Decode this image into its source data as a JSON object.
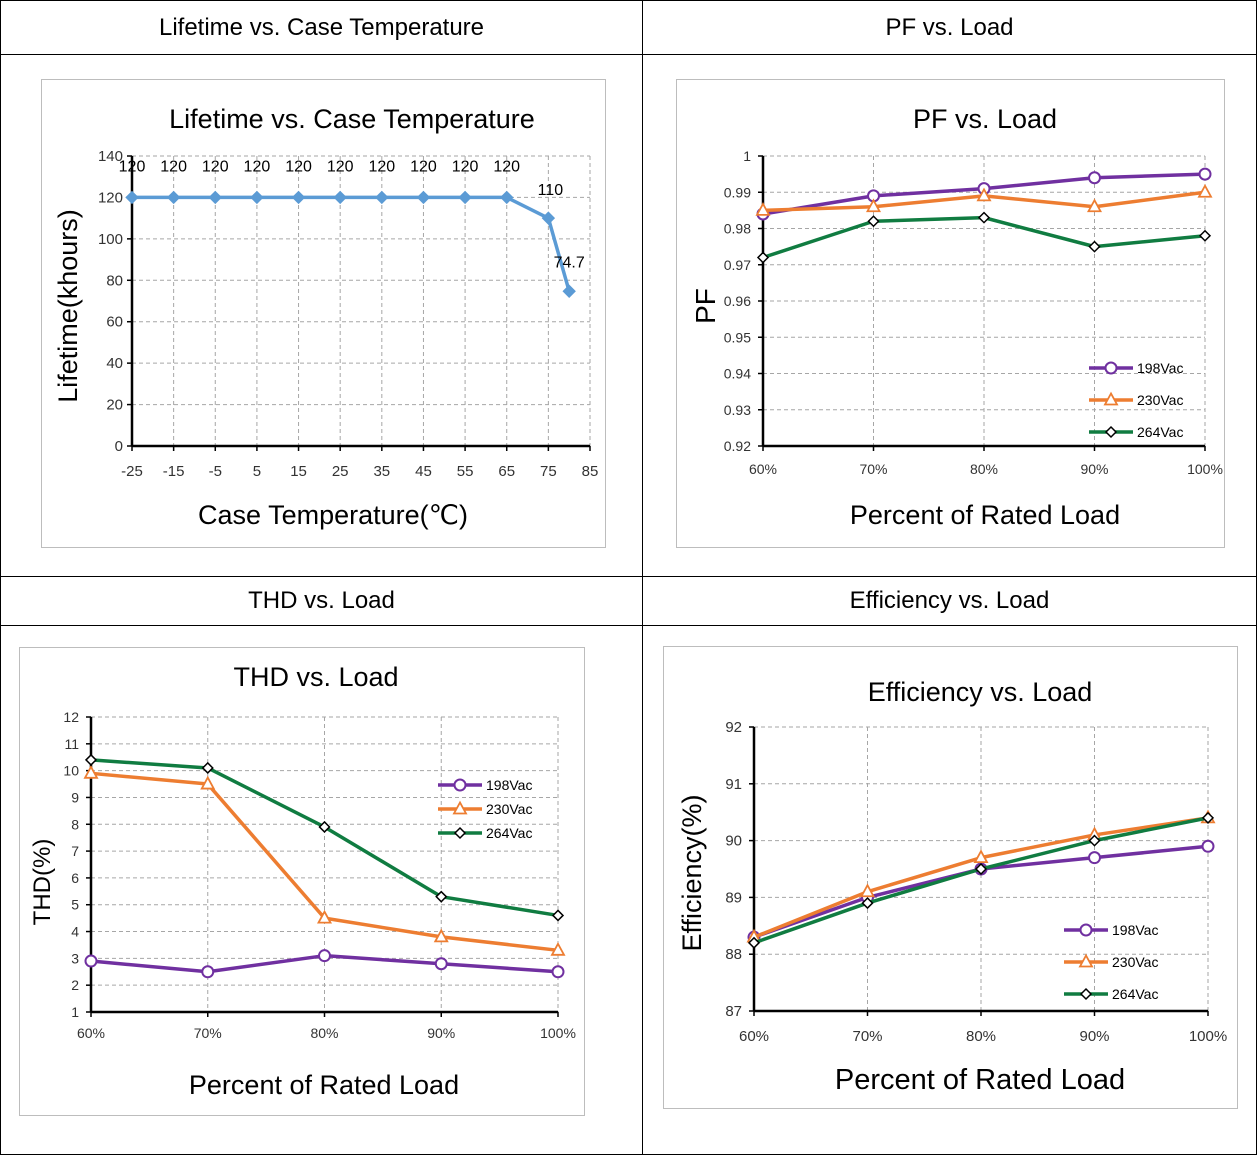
{
  "cells": [
    {
      "header": "Lifetime vs. Case Temperature"
    },
    {
      "header": "PF vs. Load"
    },
    {
      "header": "THD vs. Load"
    },
    {
      "header": "Efficiency vs. Load"
    }
  ],
  "chart_data": [
    {
      "type": "line",
      "title": "Lifetime vs. Case Temperature",
      "xlabel": "Case Temperature(℃)",
      "ylabel": "Lifetime(khours)",
      "xlim": [
        -25,
        85
      ],
      "xticks": [
        "-25",
        "-15",
        "-5",
        "5",
        "15",
        "25",
        "35",
        "45",
        "55",
        "65",
        "75",
        "85"
      ],
      "ylim": [
        0,
        140
      ],
      "yticks": [
        "0",
        "20",
        "40",
        "60",
        "80",
        "100",
        "120",
        "140"
      ],
      "grid": true,
      "series": [
        {
          "color": "#5b9bd5",
          "marker": "diamond",
          "x": [
            -25,
            -15,
            -5,
            5,
            15,
            25,
            35,
            45,
            55,
            65,
            75,
            80
          ],
          "y": [
            120,
            120,
            120,
            120,
            120,
            120,
            120,
            120,
            120,
            120,
            110,
            74.7
          ],
          "labels": [
            "120",
            "120",
            "120",
            "120",
            "120",
            "120",
            "120",
            "120",
            "120",
            "120",
            "110",
            "74.7"
          ]
        }
      ]
    },
    {
      "type": "line",
      "title": "PF vs. Load",
      "xlabel": "Percent of Rated Load",
      "ylabel": "PF",
      "categories": [
        "60%",
        "70%",
        "80%",
        "90%",
        "100%"
      ],
      "ylim": [
        0.92,
        1
      ],
      "yticks": [
        "0.92",
        "0.93",
        "0.94",
        "0.95",
        "0.96",
        "0.97",
        "0.98",
        "0.99",
        "1"
      ],
      "grid": true,
      "legend": "bottom-right",
      "series": [
        {
          "name": "198Vac",
          "color": "#7030a0",
          "marker": "circle",
          "values": [
            0.984,
            0.989,
            0.991,
            0.994,
            0.995
          ]
        },
        {
          "name": "230Vac",
          "color": "#ed7d31",
          "marker": "triangle",
          "values": [
            0.985,
            0.986,
            0.989,
            0.986,
            0.99
          ]
        },
        {
          "name": "264Vac",
          "color": "#107c41",
          "marker": "diamond",
          "values": [
            0.972,
            0.982,
            0.983,
            0.975,
            0.978
          ]
        }
      ]
    },
    {
      "type": "line",
      "title": "THD vs. Load",
      "xlabel": "Percent of Rated Load",
      "ylabel": "THD(%)",
      "categories": [
        "60%",
        "70%",
        "80%",
        "90%",
        "100%"
      ],
      "ylim": [
        1,
        12
      ],
      "yticks": [
        "1",
        "2",
        "3",
        "4",
        "5",
        "6",
        "7",
        "8",
        "9",
        "10",
        "11",
        "12"
      ],
      "grid": true,
      "legend": "top-right",
      "series": [
        {
          "name": "198Vac",
          "color": "#7030a0",
          "marker": "circle",
          "values": [
            2.9,
            2.5,
            3.1,
            2.8,
            2.5
          ]
        },
        {
          "name": "230Vac",
          "color": "#ed7d31",
          "marker": "triangle",
          "values": [
            9.9,
            9.5,
            4.5,
            3.8,
            3.3
          ]
        },
        {
          "name": "264Vac",
          "color": "#107c41",
          "marker": "diamond",
          "values": [
            10.4,
            10.1,
            7.9,
            5.3,
            4.6
          ]
        }
      ]
    },
    {
      "type": "line",
      "title": "Efficiency vs. Load",
      "xlabel": "Percent of Rated Load",
      "ylabel": "Efficiency(%)",
      "categories": [
        "60%",
        "70%",
        "80%",
        "90%",
        "100%"
      ],
      "ylim": [
        87,
        92
      ],
      "yticks": [
        "87",
        "88",
        "89",
        "90",
        "91",
        "92"
      ],
      "grid": true,
      "legend": "bottom-right",
      "series": [
        {
          "name": "198Vac",
          "color": "#7030a0",
          "marker": "circle",
          "values": [
            88.3,
            89.0,
            89.5,
            89.7,
            89.9
          ]
        },
        {
          "name": "230Vac",
          "color": "#ed7d31",
          "marker": "triangle",
          "values": [
            88.3,
            89.1,
            89.7,
            90.1,
            90.4
          ]
        },
        {
          "name": "264Vac",
          "color": "#107c41",
          "marker": "diamond",
          "values": [
            88.2,
            88.9,
            89.5,
            90.0,
            90.4
          ]
        }
      ]
    }
  ]
}
